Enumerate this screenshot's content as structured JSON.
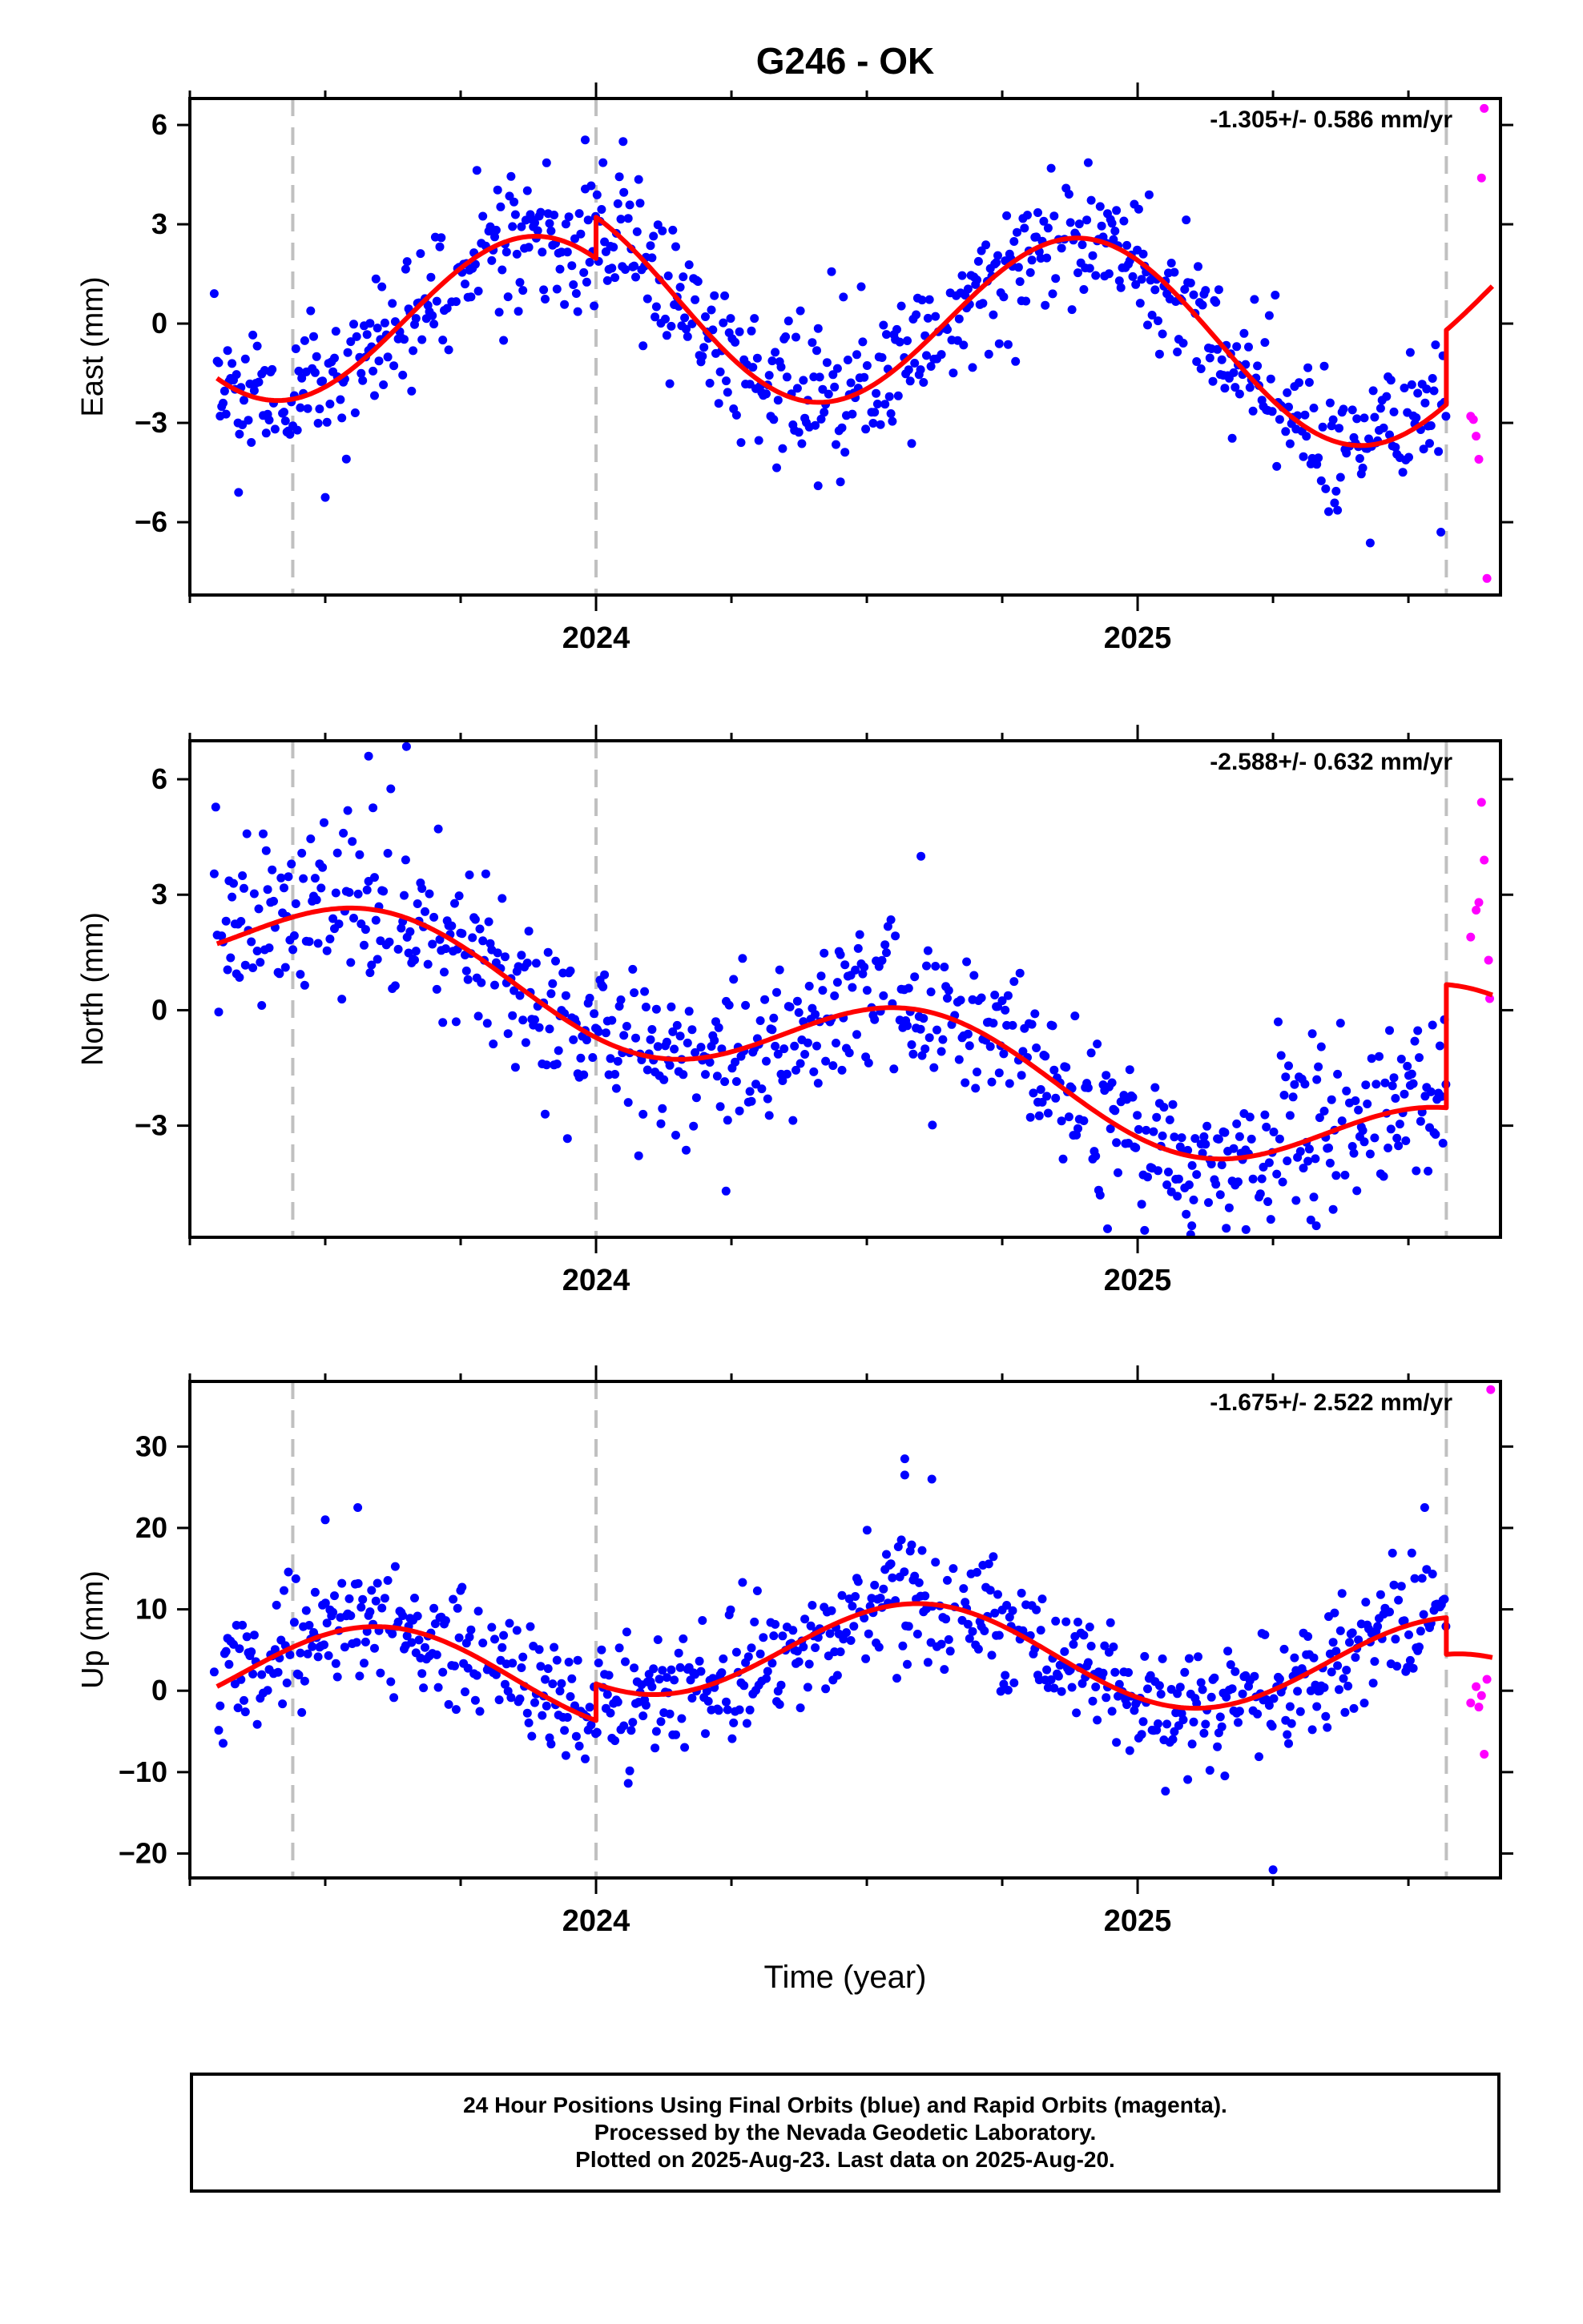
{
  "chart_data": {
    "title": "G246 - OK",
    "type": "scatter",
    "xlabel": "Time (year)",
    "xlim": [
      2023.25,
      2025.67
    ],
    "x_ticks": [
      2024,
      2025
    ],
    "x_minor_ticks": [
      2023.25,
      2023.5,
      2023.75,
      2024.25,
      2024.5,
      2024.75,
      2025.25,
      2025.5
    ],
    "grid": false,
    "vertical_dashed_lines": [
      2023.44,
      2024.0,
      2025.57
    ],
    "colors": {
      "final_orbits": "#0000ff",
      "rapid_orbits": "#ff00ff",
      "model": "#ff0000",
      "dashed_lines": "#c0c0c0"
    },
    "panels": [
      {
        "component": "east",
        "ylabel": "East (mm)",
        "rate_label": "-1.305+/- 0.586 mm/yr",
        "ylim": [
          -8.2,
          6.8
        ],
        "y_ticks": [
          6,
          3,
          0,
          -3,
          -6
        ],
        "y_tick_labels": [
          "6",
          "3",
          "0",
          "−3",
          "−6"
        ],
        "model": {
          "segments": [
            {
              "x_start": 2023.3,
              "x_end": 2024.0,
              "offset": 0.0
            },
            {
              "x_start": 2024.0,
              "x_end": 2025.57,
              "offset": 1.25
            },
            {
              "x_start": 2025.57,
              "x_end": 2025.655,
              "offset": 3.5
            }
          ],
          "intercept_at_2024": -0.3,
          "rate": -1.305,
          "annual_amplitude": 2.8,
          "annual_phase_year": 2023.9,
          "semiannual_amplitude": 0.0,
          "semiannual_phase_year": 2024.0
        },
        "series": {
          "final": {
            "noise": 1.05,
            "seed": 11,
            "outliers": [
              [
                2023.34,
                -5.1
              ],
              [
                2023.5,
                -5.25
              ],
              [
                2023.98,
                5.55
              ],
              [
                2024.05,
                5.5
              ],
              [
                2024.41,
                -4.9
              ],
              [
                2025.56,
                -6.3
              ]
            ]
          },
          "rapid": [
            [
              2025.615,
              -2.8
            ],
            [
              2025.625,
              -3.4
            ],
            [
              2025.635,
              4.4
            ],
            [
              2025.64,
              6.5
            ],
            [
              2025.63,
              -4.1
            ],
            [
              2025.645,
              -7.7
            ],
            [
              2025.62,
              -2.9
            ]
          ]
        }
      },
      {
        "component": "north",
        "ylabel": "North (mm)",
        "rate_label": "-2.588+/- 0.632 mm/yr",
        "ylim": [
          -5.9,
          7.0
        ],
        "y_ticks": [
          6,
          3,
          0,
          -3
        ],
        "y_tick_labels": [
          "6",
          "3",
          "0",
          "−3"
        ],
        "model": {
          "segments": [
            {
              "x_start": 2023.3,
              "x_end": 2025.57,
              "offset": 0.0
            },
            {
              "x_start": 2025.57,
              "x_end": 2025.655,
              "offset": 3.2
            }
          ],
          "intercept_at_2024": 0.3,
          "rate": -2.588,
          "annual_amplitude": 1.25,
          "annual_phase_year": 2023.6,
          "semiannual_amplitude": 0.0,
          "semiannual_phase_year": 2024.0
        },
        "series": {
          "final": {
            "noise": 1.05,
            "seed": 23,
            "outliers": [
              [
                2023.65,
                6.85
              ],
              [
                2023.58,
                6.6
              ],
              [
                2024.6,
                4.0
              ],
              [
                2024.24,
                -4.7
              ],
              [
                2025.2,
                -5.7
              ],
              [
                2025.33,
                -5.6
              ],
              [
                2025.1,
                -5.6
              ]
            ]
          },
          "rapid": [
            [
              2025.615,
              1.9
            ],
            [
              2025.625,
              2.6
            ],
            [
              2025.635,
              5.4
            ],
            [
              2025.64,
              3.9
            ],
            [
              2025.648,
              1.3
            ],
            [
              2025.65,
              0.3
            ],
            [
              2025.63,
              2.8
            ]
          ]
        }
      },
      {
        "component": "up",
        "ylabel": "Up (mm)",
        "rate_label": "-1.675+/- 2.522 mm/yr",
        "ylim": [
          -23.0,
          38.0
        ],
        "y_ticks": [
          30,
          20,
          10,
          0,
          -10,
          -20
        ],
        "y_tick_labels": [
          "30",
          "20",
          "10",
          "0",
          "−10",
          "−20"
        ],
        "model": {
          "segments": [
            {
              "x_start": 2023.3,
              "x_end": 2024.0,
              "offset": 0.0
            },
            {
              "x_start": 2024.0,
              "x_end": 2025.57,
              "offset": 4.5
            },
            {
              "x_start": 2025.57,
              "x_end": 2025.655,
              "offset": 0.0
            }
          ],
          "intercept_at_2024": 1.2,
          "rate": -1.675,
          "annual_amplitude": 6.0,
          "annual_phase_year": 2023.6,
          "semiannual_amplitude": 0.0,
          "semiannual_phase_year": 2024.0
        },
        "series": {
          "final": {
            "noise": 3.6,
            "seed": 37,
            "outliers": [
              [
                2024.57,
                28.5
              ],
              [
                2024.57,
                26.5
              ],
              [
                2024.62,
                26.0
              ],
              [
                2025.25,
                -22.0
              ],
              [
                2023.56,
                22.5
              ],
              [
                2023.5,
                21.0
              ],
              [
                2025.53,
                22.5
              ]
            ]
          },
          "rapid": [
            [
              2025.615,
              -1.5
            ],
            [
              2025.625,
              0.5
            ],
            [
              2025.635,
              -0.6
            ],
            [
              2025.64,
              -7.8
            ],
            [
              2025.645,
              1.4
            ],
            [
              2025.652,
              37.0
            ],
            [
              2025.63,
              -2.0
            ]
          ]
        }
      }
    ],
    "x_tick_labels": [
      "2024",
      "2025"
    ]
  },
  "footer": {
    "line1": "24 Hour Positions Using Final Orbits (blue) and Rapid Orbits (magenta).",
    "line2": "Processed by the Nevada Geodetic Laboratory.",
    "line3": "Plotted on 2025-Aug-23. Last data on 2025-Aug-20."
  }
}
